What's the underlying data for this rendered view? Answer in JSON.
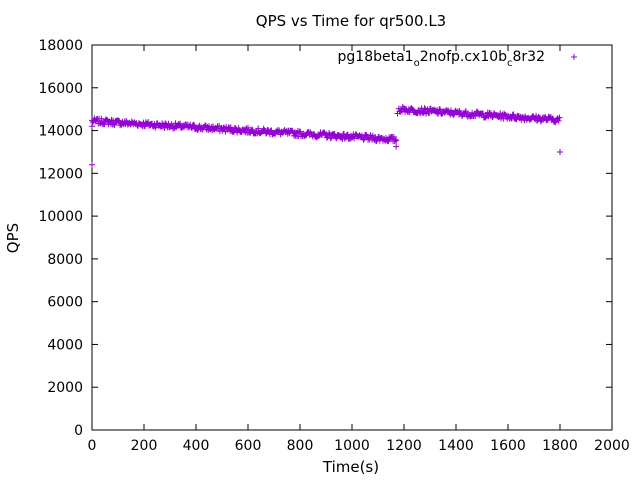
{
  "chart_data": {
    "type": "scatter",
    "title": "QPS vs Time for qr500.L3",
    "xlabel": "Time(s)",
    "ylabel": "QPS",
    "xlim": [
      0,
      2000
    ],
    "ylim": [
      0,
      18000
    ],
    "x_ticks": [
      "0",
      "200",
      "400",
      "600",
      "800",
      "1000",
      "1200",
      "1400",
      "1600",
      "1800",
      "2000"
    ],
    "y_ticks": [
      "0",
      "2000",
      "4000",
      "6000",
      "8000",
      "10000",
      "12000",
      "14000",
      "16000",
      "18000"
    ],
    "grid": false,
    "legend_position": "top-right",
    "marker": "+",
    "color": "#9400d3",
    "series": [
      {
        "name_parts": [
          "pg18beta1",
          "o",
          "2nofp.cx10b",
          "c",
          "8r32"
        ],
        "segments": [
          {
            "x_start": 0,
            "x_end": 1170,
            "y_start": 14450,
            "y_end": 13580
          },
          {
            "x_start": 1180,
            "x_end": 1800,
            "y_start": 15000,
            "y_end": 14500
          }
        ],
        "outliers": [
          {
            "x": 0,
            "y": 12400
          },
          {
            "x": 0,
            "y": 14200
          },
          {
            "x": 1170,
            "y": 13250
          },
          {
            "x": 1175,
            "y": 14800
          },
          {
            "x": 1800,
            "y": 13000
          }
        ]
      }
    ]
  }
}
